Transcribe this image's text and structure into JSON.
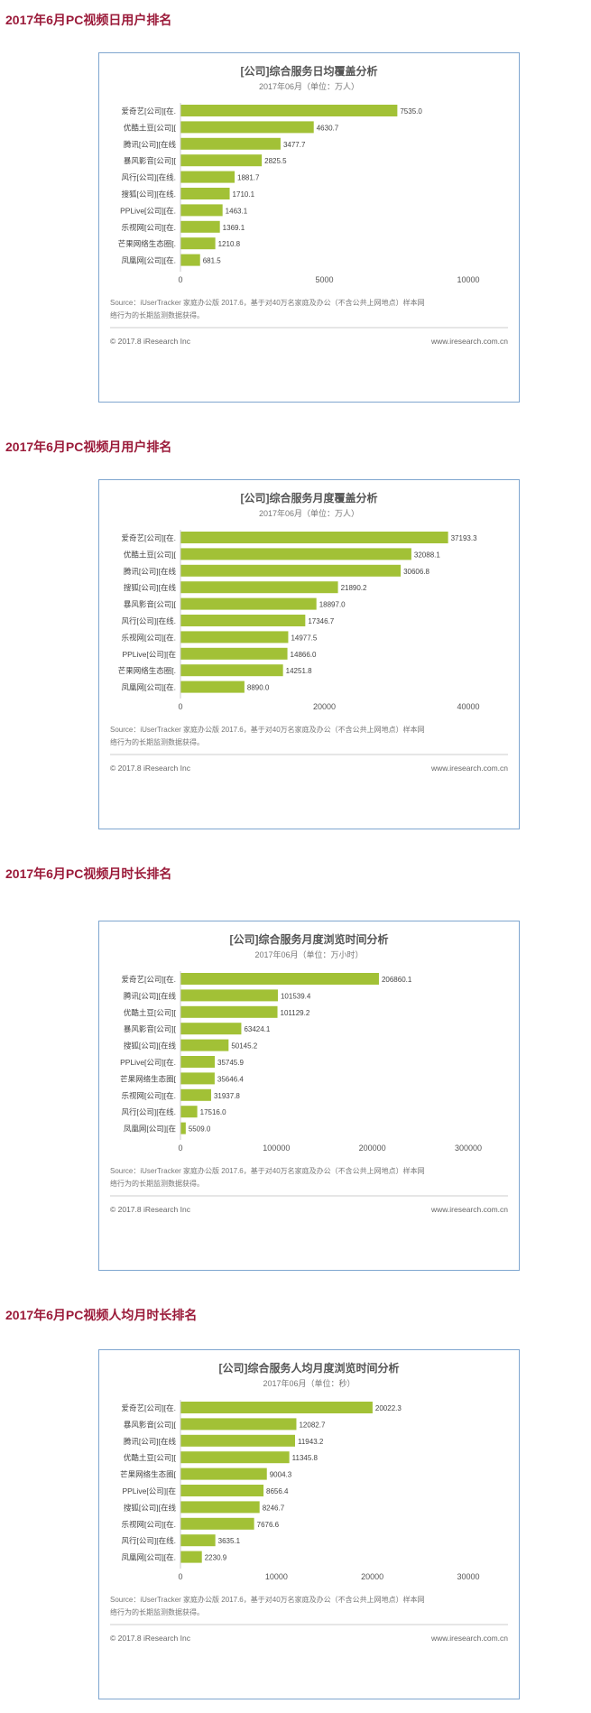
{
  "sections": [
    {
      "heading": "2017年6月PC视频日用户排名"
    },
    {
      "heading": "2017年6月PC视频月用户排名"
    },
    {
      "heading": "2017年6月PC视频月时长排名"
    },
    {
      "heading": "2017年6月PC视频人均月时长排名"
    }
  ],
  "footer": {
    "source_line1": "Source：iUserTracker 家庭办公版 2017.6，基于对40万名家庭及办公（不含公共上网地点）样本网",
    "source_line2": "络行为的长期监测数据获得。",
    "copyright": "© 2017.8 iResearch Inc",
    "website": "www.iresearch.com.cn"
  },
  "colors": {
    "bar": "#a2c136",
    "heading": "#9b1b3a",
    "border": "#7fa6cf",
    "axis": "#999999"
  },
  "chart_data": [
    {
      "type": "bar",
      "orientation": "horizontal",
      "title": "[公司]综合服务日均覆盖分析",
      "subtitle": "2017年06月（单位：万人）",
      "categories": [
        "爱奇艺[公司][在.",
        "优酷土豆[公司][",
        "腾讯[公司][在线",
        "暴风影音[公司][",
        "风行[公司][在线.",
        "搜狐[公司][在线.",
        "PPLive[公司][在.",
        "乐视网[公司][在.",
        "芒果网络生态圈[.",
        "凤凰网[公司][在."
      ],
      "values": [
        7535.0,
        4630.7,
        3477.7,
        2825.5,
        1881.7,
        1710.1,
        1463.1,
        1369.1,
        1210.8,
        681.5
      ],
      "value_labels": [
        "7535.0",
        "4630.7",
        "3477.7",
        "2825.5",
        "1881.7",
        "1710.1",
        "1463.1",
        "1369.1",
        "1210.8",
        "681.5"
      ],
      "ticks": [
        0,
        5000,
        10000
      ],
      "tick_labels": [
        "0",
        "5000",
        "10000"
      ],
      "xlim": [
        0,
        10000
      ]
    },
    {
      "type": "bar",
      "orientation": "horizontal",
      "title": "[公司]综合服务月度覆盖分析",
      "subtitle": "2017年06月（单位：万人）",
      "categories": [
        "爱奇艺[公司][在.",
        "优酷土豆[公司][",
        "腾讯[公司][在线",
        "搜狐[公司][在线",
        "暴风影音[公司][",
        "风行[公司][在线.",
        "乐视网[公司][在.",
        "PPLive[公司][在",
        "芒果网络生态圈[.",
        "凤凰网[公司][在."
      ],
      "values": [
        37193.3,
        32088.1,
        30606.8,
        21890.2,
        18897.0,
        17346.7,
        14977.5,
        14866.0,
        14251.8,
        8890.0
      ],
      "value_labels": [
        "37193.3",
        "32088.1",
        "30606.8",
        "21890.2",
        "18897.0",
        "17346.7",
        "14977.5",
        "14866.0",
        "14251.8",
        "8890.0"
      ],
      "ticks": [
        0,
        20000,
        40000
      ],
      "tick_labels": [
        "0",
        "20000",
        "40000"
      ],
      "xlim": [
        0,
        40000
      ]
    },
    {
      "type": "bar",
      "orientation": "horizontal",
      "title": "[公司]综合服务月度浏览时间分析",
      "subtitle": "2017年06月（单位：万小时）",
      "categories": [
        "爱奇艺[公司][在.",
        "腾讯[公司][在线",
        "优酷土豆[公司][",
        "暴风影音[公司][",
        "搜狐[公司][在线",
        "PPLive[公司][在.",
        "芒果网络生态圈[",
        "乐视网[公司][在.",
        "风行[公司][在线.",
        "凤凰网[公司][在"
      ],
      "values": [
        206860.1,
        101539.4,
        101129.2,
        63424.1,
        50145.2,
        35745.9,
        35646.4,
        31937.8,
        17516.0,
        5509.0
      ],
      "value_labels": [
        "206860.1",
        "101539.4",
        "101129.2",
        "63424.1",
        "50145.2",
        "35745.9",
        "35646.4",
        "31937.8",
        "17516.0",
        "5509.0"
      ],
      "ticks": [
        0,
        100000,
        200000,
        300000
      ],
      "tick_labels": [
        "0",
        "100000",
        "200000",
        "300000"
      ],
      "xlim": [
        0,
        300000
      ]
    },
    {
      "type": "bar",
      "orientation": "horizontal",
      "title": "[公司]综合服务人均月度浏览时间分析",
      "subtitle": "2017年06月（单位：秒）",
      "categories": [
        "爱奇艺[公司][在.",
        "暴风影音[公司][",
        "腾讯[公司][在线",
        "优酷土豆[公司][",
        "芒果网络生态圈[",
        "PPLive[公司][在",
        "搜狐[公司][在线",
        "乐视网[公司][在.",
        "风行[公司][在线.",
        "凤凰网[公司][在."
      ],
      "values": [
        20022.3,
        12082.7,
        11943.2,
        11345.8,
        9004.3,
        8656.4,
        8246.7,
        7676.6,
        3635.1,
        2230.9
      ],
      "value_labels": [
        "20022.3",
        "12082.7",
        "11943.2",
        "11345.8",
        "9004.3",
        "8656.4",
        "8246.7",
        "7676.6",
        "3635.1",
        "2230.9"
      ],
      "ticks": [
        0,
        10000,
        20000,
        30000
      ],
      "tick_labels": [
        "0",
        "10000",
        "20000",
        "30000"
      ],
      "xlim": [
        0,
        30000
      ]
    }
  ]
}
